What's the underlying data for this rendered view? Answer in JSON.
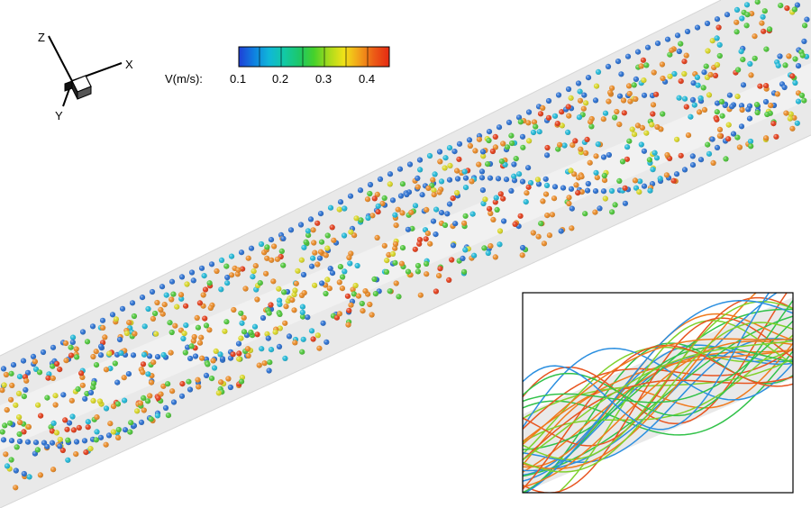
{
  "axes_triad": {
    "labels": {
      "x": "X",
      "y": "Y",
      "z": "Z"
    }
  },
  "colorbar": {
    "variable_label": "V(m/s):",
    "tick_labels": [
      "0.1",
      "0.2",
      "0.3",
      "0.4"
    ],
    "colors": [
      "#1f3fd6",
      "#0f7fe0",
      "#10b6d8",
      "#12c9a6",
      "#1cc76a",
      "#46d12b",
      "#a9db1c",
      "#f1e218",
      "#f2a01a",
      "#ec5a16",
      "#e52a12"
    ]
  },
  "scene": {
    "pipe_color": "#e6e6e6",
    "particle_palette": {
      "blue": "#2a6fd0",
      "cyan": "#20b7d6",
      "green": "#4ec63a",
      "yellow": "#d8d626",
      "orange": "#e98a26",
      "red": "#e23d1a"
    }
  },
  "inset": {
    "content": "streamlines",
    "line_colors": [
      "#2b8fe0",
      "#32c24a",
      "#f07a1c",
      "#7fd12c",
      "#e85520"
    ]
  }
}
